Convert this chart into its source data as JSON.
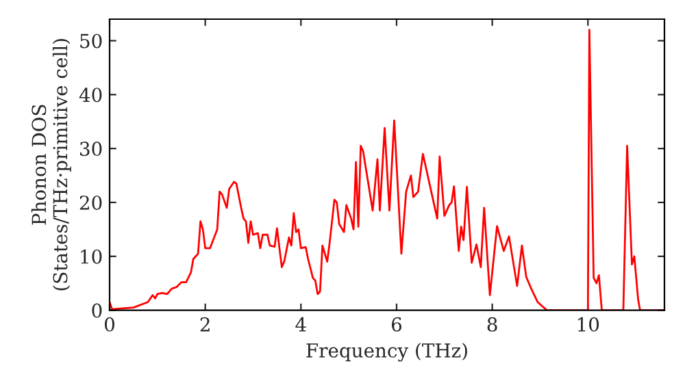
{
  "chart_data": {
    "type": "line",
    "xlabel": "Frequency (THz)",
    "ylabel": "Phonon DOS\n(States/THz·primitive cell)",
    "xlim": [
      0,
      11.6
    ],
    "ylim": [
      0,
      54
    ],
    "xticks": [
      0,
      2,
      4,
      6,
      8,
      10
    ],
    "yticks": [
      0,
      10,
      20,
      30,
      40,
      50
    ],
    "grid": false,
    "legend": false,
    "series": [
      {
        "color": "#ff0000",
        "x": [
          0,
          0.05,
          0.5,
          0.8,
          0.9,
          0.95,
          1.0,
          1.1,
          1.2,
          1.3,
          1.4,
          1.5,
          1.6,
          1.7,
          1.75,
          1.85,
          1.9,
          1.95,
          2.0,
          2.1,
          2.25,
          2.3,
          2.35,
          2.45,
          2.5,
          2.6,
          2.65,
          2.75,
          2.8,
          2.85,
          2.9,
          2.95,
          3.0,
          3.1,
          3.15,
          3.2,
          3.3,
          3.35,
          3.45,
          3.5,
          3.6,
          3.65,
          3.75,
          3.8,
          3.85,
          3.9,
          3.95,
          4.0,
          4.1,
          4.15,
          4.25,
          4.3,
          4.35,
          4.4,
          4.45,
          4.55,
          4.6,
          4.7,
          4.75,
          4.8,
          4.9,
          4.95,
          5.05,
          5.1,
          5.15,
          5.2,
          5.25,
          5.3,
          5.4,
          5.5,
          5.6,
          5.65,
          5.75,
          5.85,
          5.95,
          6.1,
          6.2,
          6.3,
          6.35,
          6.45,
          6.55,
          6.7,
          6.85,
          6.9,
          7.0,
          7.1,
          7.15,
          7.2,
          7.3,
          7.35,
          7.4,
          7.47,
          7.57,
          7.67,
          7.76,
          7.83,
          7.95,
          8.1,
          8.24,
          8.35,
          8.52,
          8.62,
          8.71,
          8.81,
          8.95,
          9.14,
          10.0,
          10.03,
          10.12,
          10.18,
          10.23,
          10.29,
          10.74,
          10.82,
          10.92,
          10.97,
          11.05,
          11.09,
          11.6
        ],
        "values": [
          1.5,
          0.2,
          0.5,
          1.5,
          2.8,
          2.2,
          3,
          3.2,
          3,
          4,
          4.3,
          5.2,
          5.2,
          7,
          9.5,
          10.5,
          16.5,
          15,
          11.5,
          11.5,
          15,
          22,
          21.5,
          19,
          22.5,
          23.8,
          23.5,
          19,
          17,
          16.5,
          12.5,
          16.5,
          14,
          14.3,
          11.5,
          14,
          14,
          12,
          11.8,
          15.2,
          8,
          9,
          13.5,
          12,
          18,
          14.5,
          15,
          11.5,
          11.7,
          9.5,
          6,
          5.5,
          3,
          3.5,
          12,
          9,
          12.5,
          20.5,
          20,
          16,
          14.5,
          19.5,
          17,
          15,
          27.5,
          15.5,
          30.5,
          29.5,
          24,
          18.5,
          28,
          18.5,
          33.8,
          18.5,
          35.2,
          10.5,
          22,
          25,
          21,
          22,
          29,
          23,
          17,
          28.5,
          17.5,
          19.5,
          20,
          23,
          11,
          15.5,
          13,
          22.9,
          8.8,
          12.2,
          8,
          19,
          2.8,
          15.6,
          11,
          13.7,
          4.5,
          12,
          6.2,
          4.1,
          1.5,
          0,
          0,
          52,
          6,
          5,
          6.5,
          0,
          0,
          30.5,
          8.5,
          10,
          2,
          0,
          0
        ]
      }
    ]
  }
}
